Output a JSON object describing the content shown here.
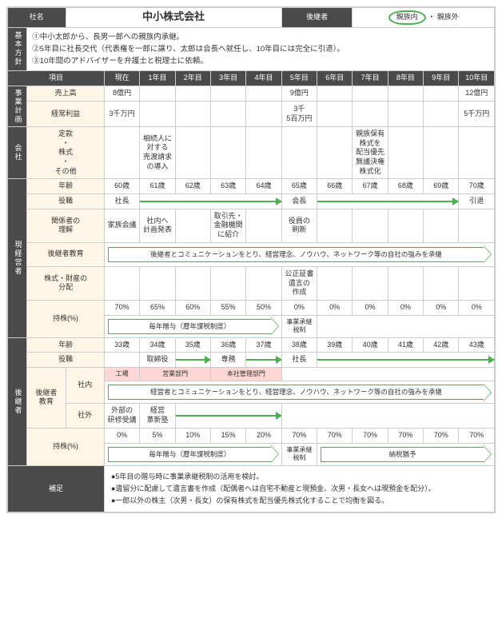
{
  "header": {
    "company_label": "社名",
    "company_name": "中小株式会社",
    "successor_label": "後継者",
    "option_internal": "親族内",
    "separator": "・",
    "option_external": "親族外"
  },
  "policy": {
    "label": "基本方針",
    "line1": "①中小太郎から、長男一郎への親族内承継。",
    "line2": "②5年目に社長交代（代表権を一郎に譲り、太郎は会長へ就任し、10年目には完全に引退）。",
    "line3": "③10年間のアドバイザーを弁護士と税理士に依頼。"
  },
  "columns": {
    "item": "項目",
    "current": "現在",
    "y1": "1年目",
    "y2": "2年目",
    "y3": "3年目",
    "y4": "4年目",
    "y5": "5年目",
    "y6": "6年目",
    "y7": "7年目",
    "y8": "8年目",
    "y9": "9年目",
    "y10": "10年目"
  },
  "sections": {
    "business": "事業計画",
    "company": "会社",
    "current_mgr": "現経営者",
    "successor": "後継者",
    "note": "補足"
  },
  "rows": {
    "sales": {
      "label": "売上高",
      "current": "8億円",
      "y5": "9億円",
      "y10": "12億円"
    },
    "profit": {
      "label": "経常利益",
      "current": "3千万円",
      "y5": "3千\n5百万円",
      "y10": "5千万円"
    },
    "articles": {
      "label": "定款\n・\n株式\n・\nその他",
      "y1": "相続人に\n対する\n売渡請求\nの導入",
      "y7": "親族保有\n株式を\n配当優先\n無議決権\n株式化"
    },
    "age1": {
      "label": "年齢",
      "vals": [
        "60歳",
        "61歳",
        "62歳",
        "63歳",
        "64歳",
        "65歳",
        "66歳",
        "67歳",
        "68歳",
        "69歳",
        "70歳"
      ]
    },
    "role1": {
      "label": "役職",
      "current": "社長",
      "y5": "会長",
      "y10": "引退"
    },
    "understand": {
      "label": "関係者の\n理解",
      "current": "家族会議",
      "y1": "社内へ\n計画発表",
      "y3": "取引先・\n金融機関\nに紹介",
      "y5": "役員の\n刷新"
    },
    "educ1": {
      "label": "後継者教育",
      "banner": "後継者とコミュニケーションをとり、経営理念、ノウハウ、ネットワーク等の自社の強みを承継"
    },
    "assets": {
      "label": "株式・財産の\n分配",
      "y5": "公正証書\n遺言の\n作成"
    },
    "shares1": {
      "label": "持株(%)",
      "vals": [
        "70%",
        "65%",
        "60%",
        "55%",
        "50%",
        "0%",
        "0%",
        "0%",
        "0%",
        "0%",
        "0%"
      ],
      "banner_left": "毎年贈与（暦年課税制度）",
      "banner_right": "事業承継\n税制"
    },
    "age2": {
      "label": "年齢",
      "vals": [
        "33歳",
        "34歳",
        "35歳",
        "36歳",
        "37歳",
        "38歳",
        "39歳",
        "40歳",
        "41歳",
        "42歳",
        "43歳"
      ]
    },
    "role2": {
      "label": "役職",
      "y1": "取締役",
      "y3": "専務",
      "y5": "社長"
    },
    "educ2": {
      "label": "後継者\n教育",
      "inside": "社内",
      "outside": "社外",
      "d1": "工場",
      "d2": "営業部門",
      "d3": "本社管理部門",
      "banner": "経営者とコミュニケーションをとり、経営理念、ノウハウ、ネットワーク等の自社の強みを承継",
      "ext_current": "外部の\n研修受講",
      "ext_y1": "経営\n革新塾"
    },
    "shares2": {
      "label": "持株(%)",
      "vals": [
        "0%",
        "5%",
        "10%",
        "15%",
        "20%",
        "70%",
        "70%",
        "70%",
        "70%",
        "70%",
        "70%"
      ],
      "banner_left": "毎年贈与（暦年課税制度）",
      "banner_mid": "事業承継\n税制",
      "banner_right": "納税猶予"
    }
  },
  "note": {
    "line1": "●5年目の贈与時に事業承継税制の活用を検討。",
    "line2": "●遺留分に配慮して遺言書を作成（配偶者へは自宅不動産と現預金、次男・長女へは現預金を配分）。",
    "line3": "●一郎以外の株主（次男・長女）の保有株式を配当優先株式化することで均衡を図る。"
  },
  "colors": {
    "green": "#4caf50",
    "dark": "#4a4a4a",
    "cream": "#fdf5e6",
    "pink": "#ffd6d6"
  }
}
